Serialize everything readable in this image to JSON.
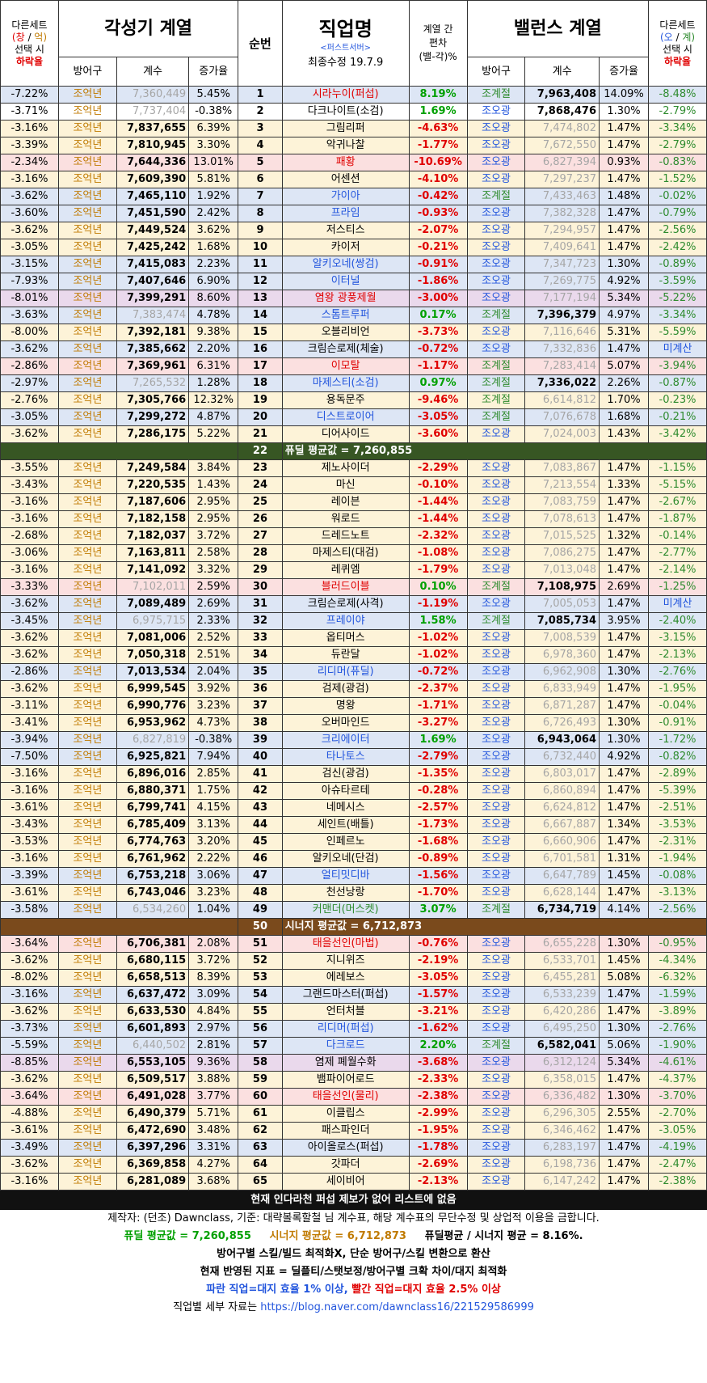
{
  "header": {
    "left_set": [
      "다른세트",
      "(창 / 억)",
      "선택 시",
      "하락율"
    ],
    "left_group": "각성기 계열",
    "sub_cols_left": [
      "방어구",
      "계수",
      "증가율"
    ],
    "order": "순번",
    "job": "직업명",
    "server": "<퍼스트서버>",
    "updated": "최종수정 19.7.9",
    "diff": [
      "계열 간",
      "편차",
      "(밸-각)%"
    ],
    "right_group": "밸런스 계열",
    "sub_cols_right": [
      "방어구",
      "계수",
      "증가율"
    ],
    "right_set": [
      "다른세트",
      "(오 / 계)",
      "선택 시",
      "하락율"
    ]
  },
  "rows": [
    [
      "-7.22%",
      "조억년",
      "7,360,449",
      "5.45%",
      "1",
      "시라누이(퍼섭)",
      "8.19%",
      "조계절",
      "7,963,408",
      "14.09%",
      "-8.48%",
      "b",
      "g",
      "r",
      "bal"
    ],
    [
      "-3.71%",
      "조억년",
      "7,737,404",
      "-0.38%",
      "2",
      "다크나이트(소검)",
      "1.69%",
      "조오광",
      "7,868,476",
      "1.30%",
      "-2.79%",
      "n",
      "g",
      "n",
      "bal"
    ],
    [
      "-3.16%",
      "조억년",
      "7,837,655",
      "6.39%",
      "3",
      "그림리퍼",
      "-4.63%",
      "조오광",
      "7,474,802",
      "1.47%",
      "-3.34%",
      "y",
      "b",
      "n",
      "awk"
    ],
    [
      "-3.39%",
      "조억년",
      "7,810,945",
      "3.30%",
      "4",
      "악귀나찰",
      "-1.77%",
      "조오광",
      "7,672,550",
      "1.47%",
      "-2.79%",
      "y",
      "b",
      "n",
      "awk"
    ],
    [
      "-2.34%",
      "조억년",
      "7,644,336",
      "13.01%",
      "5",
      "패황",
      "-10.69%",
      "조오광",
      "6,827,394",
      "0.93%",
      "-0.83%",
      "r",
      "b",
      "r",
      "awk"
    ],
    [
      "-3.16%",
      "조억년",
      "7,609,390",
      "5.81%",
      "6",
      "어센션",
      "-4.10%",
      "조오광",
      "7,297,237",
      "1.47%",
      "-1.52%",
      "y",
      "b",
      "n",
      "awk"
    ],
    [
      "-3.62%",
      "조억년",
      "7,465,110",
      "1.92%",
      "7",
      "가이아",
      "-0.42%",
      "조계절",
      "7,433,463",
      "1.48%",
      "-0.02%",
      "b",
      "b",
      "bl",
      "awk"
    ],
    [
      "-3.60%",
      "조억년",
      "7,451,590",
      "2.42%",
      "8",
      "프라임",
      "-0.93%",
      "조오광",
      "7,382,328",
      "1.47%",
      "-0.79%",
      "b",
      "b",
      "bl",
      "awk"
    ],
    [
      "-3.62%",
      "조억년",
      "7,449,524",
      "3.62%",
      "9",
      "저스티스",
      "-2.07%",
      "조오광",
      "7,294,957",
      "1.47%",
      "-2.56%",
      "y",
      "b",
      "n",
      "awk"
    ],
    [
      "-3.05%",
      "조억년",
      "7,425,242",
      "1.68%",
      "10",
      "카이저",
      "-0.21%",
      "조오광",
      "7,409,641",
      "1.47%",
      "-2.42%",
      "y",
      "b",
      "n",
      "awk"
    ],
    [
      "-3.15%",
      "조억년",
      "7,415,083",
      "2.23%",
      "11",
      "알키오네(쌍검)",
      "-0.91%",
      "조오광",
      "7,347,723",
      "1.30%",
      "-0.89%",
      "b",
      "b",
      "bl",
      "awk"
    ],
    [
      "-7.93%",
      "조억년",
      "7,407,646",
      "6.90%",
      "12",
      "이터널",
      "-1.86%",
      "조오광",
      "7,269,775",
      "4.92%",
      "-3.59%",
      "b",
      "b",
      "bl",
      "awk"
    ],
    [
      "-8.01%",
      "조억년",
      "7,399,291",
      "8.60%",
      "13",
      "염왕 광풍제월",
      "-3.00%",
      "조오광",
      "7,177,194",
      "5.34%",
      "-5.22%",
      "p",
      "b",
      "r",
      "awk"
    ],
    [
      "-3.63%",
      "조억년",
      "7,383,474",
      "4.78%",
      "14",
      "스톰트루퍼",
      "0.17%",
      "조계절",
      "7,396,379",
      "4.97%",
      "-3.34%",
      "b",
      "g",
      "bl",
      "bal"
    ],
    [
      "-8.00%",
      "조억년",
      "7,392,181",
      "9.38%",
      "15",
      "오블리비언",
      "-3.73%",
      "조오광",
      "7,116,646",
      "5.31%",
      "-5.59%",
      "y",
      "b",
      "n",
      "awk"
    ],
    [
      "-3.62%",
      "조억년",
      "7,385,662",
      "2.20%",
      "16",
      "크림슨로제(체술)",
      "-0.72%",
      "조오광",
      "7,332,836",
      "1.47%",
      "미계산",
      "b",
      "b",
      "n",
      "awk"
    ],
    [
      "-2.86%",
      "조억년",
      "7,369,961",
      "6.31%",
      "17",
      "이모탈",
      "-1.17%",
      "조계절",
      "7,283,414",
      "5.07%",
      "-3.94%",
      "r",
      "b",
      "r",
      "awk"
    ],
    [
      "-2.97%",
      "조억년",
      "7,265,532",
      "1.28%",
      "18",
      "마제스티(소검)",
      "0.97%",
      "조계절",
      "7,336,022",
      "2.26%",
      "-0.87%",
      "b",
      "g",
      "bl",
      "bal"
    ],
    [
      "-2.76%",
      "조억년",
      "7,305,766",
      "12.32%",
      "19",
      "용독문주",
      "-9.46%",
      "조계절",
      "6,614,812",
      "1.70%",
      "-0.23%",
      "y",
      "b",
      "n",
      "awk"
    ],
    [
      "-3.05%",
      "조억년",
      "7,299,272",
      "4.87%",
      "20",
      "디스트로이어",
      "-3.05%",
      "조계절",
      "7,076,678",
      "1.68%",
      "-0.21%",
      "b",
      "b",
      "bl",
      "awk"
    ],
    [
      "-3.62%",
      "조억년",
      "7,286,175",
      "5.22%",
      "21",
      "디어사이드",
      "-3.60%",
      "조오광",
      "7,024,003",
      "1.43%",
      "-3.42%",
      "y",
      "b",
      "n",
      "awk"
    ],
    [
      "SEP1",
      "22",
      "퓨딜 평균값 = 7,260,855"
    ],
    [
      "-3.55%",
      "조억년",
      "7,249,584",
      "3.84%",
      "23",
      "제노사이더",
      "-2.29%",
      "조오광",
      "7,083,867",
      "1.47%",
      "-1.15%",
      "y",
      "b",
      "n",
      "awk"
    ],
    [
      "-3.43%",
      "조억년",
      "7,220,535",
      "1.43%",
      "24",
      "마신",
      "-0.10%",
      "조오광",
      "7,213,554",
      "1.33%",
      "-5.15%",
      "y",
      "b",
      "n",
      "awk"
    ],
    [
      "-3.16%",
      "조억년",
      "7,187,606",
      "2.95%",
      "25",
      "레이븐",
      "-1.44%",
      "조오광",
      "7,083,759",
      "1.47%",
      "-2.67%",
      "y",
      "b",
      "n",
      "awk"
    ],
    [
      "-3.16%",
      "조억년",
      "7,182,158",
      "2.95%",
      "26",
      "워로드",
      "-1.44%",
      "조오광",
      "7,078,613",
      "1.47%",
      "-1.87%",
      "y",
      "b",
      "n",
      "awk"
    ],
    [
      "-2.68%",
      "조억년",
      "7,182,037",
      "3.72%",
      "27",
      "드레드노트",
      "-2.32%",
      "조오광",
      "7,015,525",
      "1.32%",
      "-0.14%",
      "y",
      "b",
      "n",
      "awk"
    ],
    [
      "-3.06%",
      "조억년",
      "7,163,811",
      "2.58%",
      "28",
      "마제스티(대검)",
      "-1.08%",
      "조오광",
      "7,086,275",
      "1.47%",
      "-2.77%",
      "y",
      "b",
      "n",
      "awk"
    ],
    [
      "-3.16%",
      "조억년",
      "7,141,092",
      "3.32%",
      "29",
      "레퀴엠",
      "-1.79%",
      "조오광",
      "7,013,048",
      "1.47%",
      "-2.14%",
      "y",
      "b",
      "n",
      "awk"
    ],
    [
      "-3.33%",
      "조억년",
      "7,102,011",
      "2.59%",
      "30",
      "블러드이블",
      "0.10%",
      "조계절",
      "7,108,975",
      "2.69%",
      "-1.25%",
      "r",
      "g",
      "r",
      "bal"
    ],
    [
      "-3.62%",
      "조억년",
      "7,089,489",
      "2.69%",
      "31",
      "크림슨로제(사격)",
      "-1.19%",
      "조오광",
      "7,005,053",
      "1.47%",
      "미계산",
      "b",
      "b",
      "n",
      "awk"
    ],
    [
      "-3.45%",
      "조억년",
      "6,975,715",
      "2.33%",
      "32",
      "프레이야",
      "1.58%",
      "조계절",
      "7,085,734",
      "3.95%",
      "-2.40%",
      "b",
      "g",
      "bl",
      "bal"
    ],
    [
      "-3.62%",
      "조억년",
      "7,081,006",
      "2.52%",
      "33",
      "옵티머스",
      "-1.02%",
      "조오광",
      "7,008,539",
      "1.47%",
      "-3.15%",
      "y",
      "b",
      "n",
      "awk"
    ],
    [
      "-3.62%",
      "조억년",
      "7,050,318",
      "2.51%",
      "34",
      "듀란달",
      "-1.02%",
      "조오광",
      "6,978,360",
      "1.47%",
      "-2.13%",
      "y",
      "b",
      "n",
      "awk"
    ],
    [
      "-2.86%",
      "조억년",
      "7,013,534",
      "2.04%",
      "35",
      "리디머(퓨딜)",
      "-0.72%",
      "조오광",
      "6,962,908",
      "1.30%",
      "-2.76%",
      "b",
      "b",
      "bl",
      "awk"
    ],
    [
      "-3.62%",
      "조억년",
      "6,999,545",
      "3.92%",
      "36",
      "검제(광검)",
      "-2.37%",
      "조오광",
      "6,833,949",
      "1.47%",
      "-1.95%",
      "y",
      "b",
      "n",
      "awk"
    ],
    [
      "-3.11%",
      "조억년",
      "6,990,776",
      "3.23%",
      "37",
      "명왕",
      "-1.71%",
      "조오광",
      "6,871,287",
      "1.47%",
      "-0.04%",
      "y",
      "b",
      "n",
      "awk"
    ],
    [
      "-3.41%",
      "조억년",
      "6,953,962",
      "4.73%",
      "38",
      "오버마인드",
      "-3.27%",
      "조오광",
      "6,726,493",
      "1.30%",
      "-0.91%",
      "y",
      "b",
      "n",
      "awk"
    ],
    [
      "-3.94%",
      "조억년",
      "6,827,819",
      "-0.38%",
      "39",
      "크리에이터",
      "1.69%",
      "조오광",
      "6,943,064",
      "1.30%",
      "-1.72%",
      "b",
      "g",
      "bl",
      "bal"
    ],
    [
      "-7.50%",
      "조억년",
      "6,925,821",
      "7.94%",
      "40",
      "타나토스",
      "-2.79%",
      "조오광",
      "6,732,440",
      "4.92%",
      "-0.82%",
      "b",
      "b",
      "bl",
      "awk"
    ],
    [
      "-3.16%",
      "조억년",
      "6,896,016",
      "2.85%",
      "41",
      "검신(광검)",
      "-1.35%",
      "조오광",
      "6,803,017",
      "1.47%",
      "-2.89%",
      "y",
      "b",
      "n",
      "awk"
    ],
    [
      "-3.16%",
      "조억년",
      "6,880,371",
      "1.75%",
      "42",
      "아슈타르테",
      "-0.28%",
      "조오광",
      "6,860,894",
      "1.47%",
      "-5.39%",
      "y",
      "b",
      "n",
      "awk"
    ],
    [
      "-3.61%",
      "조억년",
      "6,799,741",
      "4.15%",
      "43",
      "네메시스",
      "-2.57%",
      "조오광",
      "6,624,812",
      "1.47%",
      "-2.51%",
      "y",
      "b",
      "n",
      "awk"
    ],
    [
      "-3.43%",
      "조억년",
      "6,785,409",
      "3.13%",
      "44",
      "세인트(배틀)",
      "-1.73%",
      "조오광",
      "6,667,887",
      "1.34%",
      "-3.53%",
      "y",
      "b",
      "n",
      "awk"
    ],
    [
      "-3.53%",
      "조억년",
      "6,774,763",
      "3.20%",
      "45",
      "인페르노",
      "-1.68%",
      "조오광",
      "6,660,906",
      "1.47%",
      "-2.31%",
      "y",
      "b",
      "n",
      "awk"
    ],
    [
      "-3.16%",
      "조억년",
      "6,761,962",
      "2.22%",
      "46",
      "알키오네(단검)",
      "-0.89%",
      "조오광",
      "6,701,581",
      "1.31%",
      "-1.94%",
      "y",
      "b",
      "n",
      "awk"
    ],
    [
      "-3.39%",
      "조억년",
      "6,753,218",
      "3.06%",
      "47",
      "얼티밋디바",
      "-1.56%",
      "조오광",
      "6,647,789",
      "1.45%",
      "-0.08%",
      "b",
      "b",
      "bl",
      "awk"
    ],
    [
      "-3.61%",
      "조억년",
      "6,743,046",
      "3.23%",
      "48",
      "천선낭랑",
      "-1.70%",
      "조오광",
      "6,628,144",
      "1.47%",
      "-3.13%",
      "y",
      "b",
      "n",
      "awk"
    ],
    [
      "-3.58%",
      "조억년",
      "6,534,260",
      "1.04%",
      "49",
      "커맨더(머스켓)",
      "3.07%",
      "조계절",
      "6,734,719",
      "4.14%",
      "-2.56%",
      "b",
      "g",
      "ng",
      "bal"
    ],
    [
      "SEP2",
      "50",
      "시너지 평균값 = 6,712,873"
    ],
    [
      "-3.64%",
      "조억년",
      "6,706,381",
      "2.08%",
      "51",
      "태을선인(마법)",
      "-0.76%",
      "조오광",
      "6,655,228",
      "1.30%",
      "-0.95%",
      "r",
      "b",
      "r",
      "awk"
    ],
    [
      "-3.62%",
      "조억년",
      "6,680,115",
      "3.72%",
      "52",
      "지니위즈",
      "-2.19%",
      "조오광",
      "6,533,701",
      "1.45%",
      "-4.34%",
      "y",
      "b",
      "n",
      "awk"
    ],
    [
      "-8.02%",
      "조억년",
      "6,658,513",
      "8.39%",
      "53",
      "에레보스",
      "-3.05%",
      "조오광",
      "6,455,281",
      "5.08%",
      "-6.32%",
      "y",
      "b",
      "n",
      "awk"
    ],
    [
      "-3.16%",
      "조억년",
      "6,637,472",
      "3.09%",
      "54",
      "그랜드마스터(퍼섭)",
      "-1.57%",
      "조오광",
      "6,533,239",
      "1.47%",
      "-1.59%",
      "b",
      "b",
      "n",
      "awk"
    ],
    [
      "-3.62%",
      "조억년",
      "6,633,530",
      "4.84%",
      "55",
      "언터처블",
      "-3.21%",
      "조오광",
      "6,420,286",
      "1.47%",
      "-3.89%",
      "y",
      "b",
      "n",
      "awk"
    ],
    [
      "-3.73%",
      "조억년",
      "6,601,893",
      "2.97%",
      "56",
      "리디머(퍼섭)",
      "-1.62%",
      "조오광",
      "6,495,250",
      "1.30%",
      "-2.76%",
      "b",
      "b",
      "bl",
      "awk"
    ],
    [
      "-5.59%",
      "조억년",
      "6,440,502",
      "2.81%",
      "57",
      "다크로드",
      "2.20%",
      "조계절",
      "6,582,041",
      "5.06%",
      "-1.90%",
      "b",
      "g",
      "bl",
      "bal"
    ],
    [
      "-8.85%",
      "조억년",
      "6,553,105",
      "9.36%",
      "58",
      "염제 폐월수화",
      "-3.68%",
      "조오광",
      "6,312,124",
      "5.34%",
      "-4.61%",
      "p",
      "b",
      "n",
      "awk"
    ],
    [
      "-3.62%",
      "조억년",
      "6,509,517",
      "3.88%",
      "59",
      "뱀파이어로드",
      "-2.33%",
      "조오광",
      "6,358,015",
      "1.47%",
      "-4.37%",
      "y",
      "b",
      "n",
      "awk"
    ],
    [
      "-3.64%",
      "조억년",
      "6,491,028",
      "3.77%",
      "60",
      "태을선인(물리)",
      "-2.38%",
      "조오광",
      "6,336,482",
      "1.30%",
      "-3.70%",
      "r",
      "b",
      "r",
      "awk"
    ],
    [
      "-4.88%",
      "조억년",
      "6,490,379",
      "5.71%",
      "61",
      "이클립스",
      "-2.99%",
      "조오광",
      "6,296,305",
      "2.55%",
      "-2.70%",
      "y",
      "b",
      "n",
      "awk"
    ],
    [
      "-3.61%",
      "조억년",
      "6,472,690",
      "3.48%",
      "62",
      "패스파인더",
      "-1.95%",
      "조오광",
      "6,346,462",
      "1.47%",
      "-3.05%",
      "y",
      "b",
      "n",
      "awk"
    ],
    [
      "-3.49%",
      "조억년",
      "6,397,296",
      "3.31%",
      "63",
      "아이올로스(퍼섭)",
      "-1.78%",
      "조오광",
      "6,283,197",
      "1.47%",
      "-4.19%",
      "b",
      "b",
      "n",
      "awk"
    ],
    [
      "-3.62%",
      "조억년",
      "6,369,858",
      "4.27%",
      "64",
      "갓파더",
      "-2.69%",
      "조오광",
      "6,198,736",
      "1.47%",
      "-2.47%",
      "y",
      "b",
      "n",
      "awk"
    ],
    [
      "-3.16%",
      "조억년",
      "6,281,089",
      "3.68%",
      "65",
      "세이비어",
      "-2.13%",
      "조오광",
      "6,147,242",
      "1.47%",
      "-2.38%",
      "y",
      "b",
      "n",
      "awk"
    ]
  ],
  "notice": "현재 인다라천 퍼섭 제보가 없어 리스트에 없음",
  "footer": {
    "credit": "제작자: (던조) Dawnclass, 기준: 대략볼록할철 님 계수표, 해당 계수표의 무단수정 및 상업적 이용을 금합니다.",
    "avg_deal": "퓨딜 평균값 = 7,260,855",
    "avg_syn": "시너지 평균값 = 6,712,873",
    "ratio": "퓨딜평균 / 시너지 평균 = 8.16%.",
    "line2": "방어구별 스킬/빌드 최적화X, 단순 방어구/스킬 변환으로 환산",
    "line3": "현재 반영된 지표 = 딜플티/스탯보정/방어구별 크확 차이/대지 최적화",
    "blue_note": "파란 직업=대지 효율 1% 이상,",
    "red_note": "빨간 직업=대지 효율 2.5% 이상",
    "detail_label": "직업별 세부 자료는",
    "url": "https://blog.naver.com/dawnclass16/221529586999"
  },
  "colors": {
    "sep_deal": "#375623",
    "sep_syn": "#7a4a1c"
  }
}
